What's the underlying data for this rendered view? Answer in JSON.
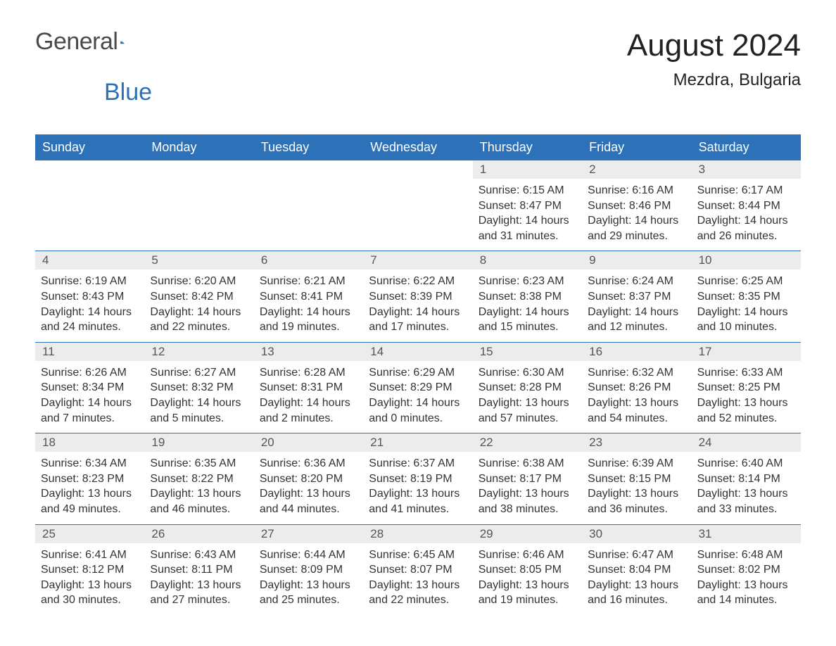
{
  "logo": {
    "text1": "General",
    "text2": "Blue"
  },
  "title": "August 2024",
  "location": "Mezdra, Bulgaria",
  "colors": {
    "header_bg": "#2d71b8",
    "header_text": "#ffffff",
    "daynum_bg": "#ececec",
    "daynum_text": "#555555",
    "body_text": "#333333",
    "week_divider": "#2d71b8",
    "page_bg": "#ffffff"
  },
  "dayNames": [
    "Sunday",
    "Monday",
    "Tuesday",
    "Wednesday",
    "Thursday",
    "Friday",
    "Saturday"
  ],
  "weeks": [
    [
      null,
      null,
      null,
      null,
      {
        "n": "1",
        "sunrise": "6:15 AM",
        "sunset": "8:47 PM",
        "dh": "14",
        "dm": "31"
      },
      {
        "n": "2",
        "sunrise": "6:16 AM",
        "sunset": "8:46 PM",
        "dh": "14",
        "dm": "29"
      },
      {
        "n": "3",
        "sunrise": "6:17 AM",
        "sunset": "8:44 PM",
        "dh": "14",
        "dm": "26"
      }
    ],
    [
      {
        "n": "4",
        "sunrise": "6:19 AM",
        "sunset": "8:43 PM",
        "dh": "14",
        "dm": "24"
      },
      {
        "n": "5",
        "sunrise": "6:20 AM",
        "sunset": "8:42 PM",
        "dh": "14",
        "dm": "22"
      },
      {
        "n": "6",
        "sunrise": "6:21 AM",
        "sunset": "8:41 PM",
        "dh": "14",
        "dm": "19"
      },
      {
        "n": "7",
        "sunrise": "6:22 AM",
        "sunset": "8:39 PM",
        "dh": "14",
        "dm": "17"
      },
      {
        "n": "8",
        "sunrise": "6:23 AM",
        "sunset": "8:38 PM",
        "dh": "14",
        "dm": "15"
      },
      {
        "n": "9",
        "sunrise": "6:24 AM",
        "sunset": "8:37 PM",
        "dh": "14",
        "dm": "12"
      },
      {
        "n": "10",
        "sunrise": "6:25 AM",
        "sunset": "8:35 PM",
        "dh": "14",
        "dm": "10"
      }
    ],
    [
      {
        "n": "11",
        "sunrise": "6:26 AM",
        "sunset": "8:34 PM",
        "dh": "14",
        "dm": "7"
      },
      {
        "n": "12",
        "sunrise": "6:27 AM",
        "sunset": "8:32 PM",
        "dh": "14",
        "dm": "5"
      },
      {
        "n": "13",
        "sunrise": "6:28 AM",
        "sunset": "8:31 PM",
        "dh": "14",
        "dm": "2"
      },
      {
        "n": "14",
        "sunrise": "6:29 AM",
        "sunset": "8:29 PM",
        "dh": "14",
        "dm": "0"
      },
      {
        "n": "15",
        "sunrise": "6:30 AM",
        "sunset": "8:28 PM",
        "dh": "13",
        "dm": "57"
      },
      {
        "n": "16",
        "sunrise": "6:32 AM",
        "sunset": "8:26 PM",
        "dh": "13",
        "dm": "54"
      },
      {
        "n": "17",
        "sunrise": "6:33 AM",
        "sunset": "8:25 PM",
        "dh": "13",
        "dm": "52"
      }
    ],
    [
      {
        "n": "18",
        "sunrise": "6:34 AM",
        "sunset": "8:23 PM",
        "dh": "13",
        "dm": "49"
      },
      {
        "n": "19",
        "sunrise": "6:35 AM",
        "sunset": "8:22 PM",
        "dh": "13",
        "dm": "46"
      },
      {
        "n": "20",
        "sunrise": "6:36 AM",
        "sunset": "8:20 PM",
        "dh": "13",
        "dm": "44"
      },
      {
        "n": "21",
        "sunrise": "6:37 AM",
        "sunset": "8:19 PM",
        "dh": "13",
        "dm": "41"
      },
      {
        "n": "22",
        "sunrise": "6:38 AM",
        "sunset": "8:17 PM",
        "dh": "13",
        "dm": "38"
      },
      {
        "n": "23",
        "sunrise": "6:39 AM",
        "sunset": "8:15 PM",
        "dh": "13",
        "dm": "36"
      },
      {
        "n": "24",
        "sunrise": "6:40 AM",
        "sunset": "8:14 PM",
        "dh": "13",
        "dm": "33"
      }
    ],
    [
      {
        "n": "25",
        "sunrise": "6:41 AM",
        "sunset": "8:12 PM",
        "dh": "13",
        "dm": "30"
      },
      {
        "n": "26",
        "sunrise": "6:43 AM",
        "sunset": "8:11 PM",
        "dh": "13",
        "dm": "27"
      },
      {
        "n": "27",
        "sunrise": "6:44 AM",
        "sunset": "8:09 PM",
        "dh": "13",
        "dm": "25"
      },
      {
        "n": "28",
        "sunrise": "6:45 AM",
        "sunset": "8:07 PM",
        "dh": "13",
        "dm": "22"
      },
      {
        "n": "29",
        "sunrise": "6:46 AM",
        "sunset": "8:05 PM",
        "dh": "13",
        "dm": "19"
      },
      {
        "n": "30",
        "sunrise": "6:47 AM",
        "sunset": "8:04 PM",
        "dh": "13",
        "dm": "16"
      },
      {
        "n": "31",
        "sunrise": "6:48 AM",
        "sunset": "8:02 PM",
        "dh": "13",
        "dm": "14"
      }
    ]
  ],
  "labels": {
    "sunrise": "Sunrise:",
    "sunset": "Sunset:",
    "daylight_prefix": "Daylight:",
    "hours_word": "hours",
    "and_word": "and",
    "minutes_word": "minutes."
  }
}
